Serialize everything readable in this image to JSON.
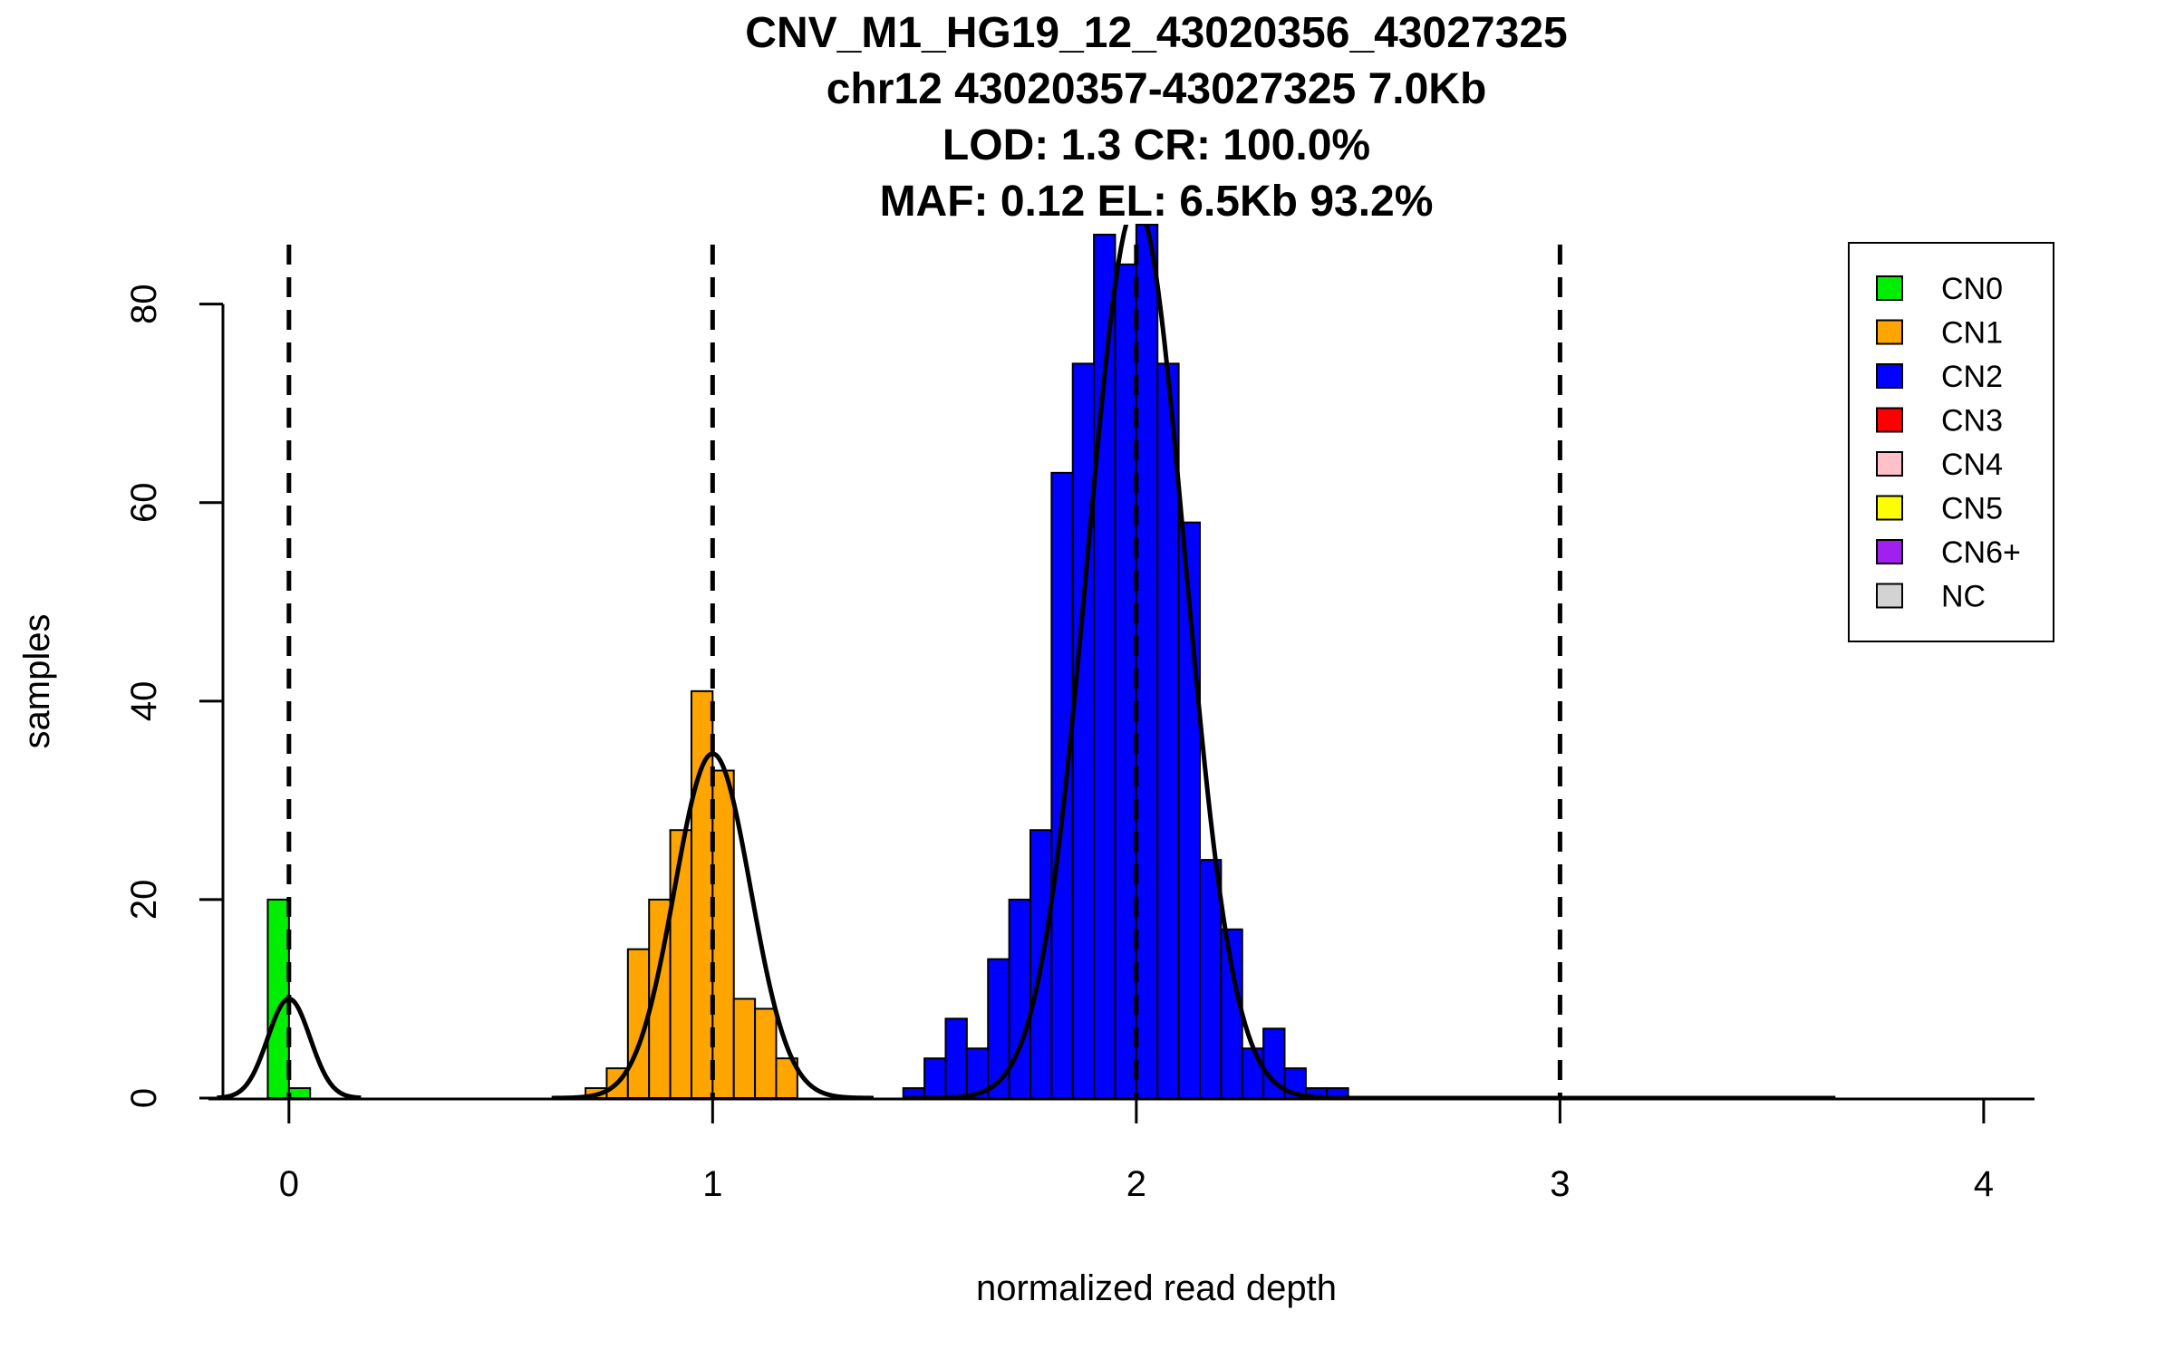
{
  "chart_data": {
    "type": "bar",
    "title_lines": [
      "CNV_M1_HG19_12_43020356_43027325",
      "chr12 43020357-43027325 7.0Kb",
      "LOD: 1.3 CR: 100.0%",
      "MAF: 0.12 EL: 6.5Kb 93.2%"
    ],
    "xlabel": "normalized read depth",
    "ylabel": "samples",
    "xlim": [
      -0.19,
      4.12
    ],
    "ylim": [
      0,
      88
    ],
    "x_ticks": [
      0,
      1,
      2,
      3,
      4
    ],
    "y_ticks": [
      0,
      20,
      40,
      60,
      80
    ],
    "bin_width": 0.05,
    "grid": false,
    "legend_position": "top-right",
    "reference_lines": [
      0,
      1,
      2,
      3
    ],
    "series": [
      {
        "name": "CN0",
        "color": "#00ee00",
        "bins": [
          [
            -0.025,
            20
          ],
          [
            0.025,
            1
          ]
        ]
      },
      {
        "name": "CN1",
        "color": "#ffa500",
        "bins": [
          [
            0.725,
            1
          ],
          [
            0.775,
            3
          ],
          [
            0.825,
            15
          ],
          [
            0.875,
            20
          ],
          [
            0.925,
            27
          ],
          [
            0.975,
            41
          ],
          [
            1.025,
            33
          ],
          [
            1.075,
            10
          ],
          [
            1.125,
            9
          ],
          [
            1.175,
            4
          ]
        ]
      },
      {
        "name": "CN2",
        "color": "#0000ff",
        "bins": [
          [
            1.475,
            1
          ],
          [
            1.525,
            4
          ],
          [
            1.575,
            8
          ],
          [
            1.625,
            5
          ],
          [
            1.675,
            14
          ],
          [
            1.725,
            20
          ],
          [
            1.775,
            27
          ],
          [
            1.825,
            63
          ],
          [
            1.875,
            74
          ],
          [
            1.925,
            87
          ],
          [
            1.975,
            84
          ],
          [
            2.025,
            88
          ],
          [
            2.075,
            74
          ],
          [
            2.125,
            58
          ],
          [
            2.175,
            24
          ],
          [
            2.225,
            17
          ],
          [
            2.275,
            5
          ],
          [
            2.325,
            7
          ],
          [
            2.375,
            3
          ],
          [
            2.425,
            1
          ],
          [
            2.475,
            1
          ]
        ]
      },
      {
        "name": "CN3",
        "color": "#ff0000",
        "bins": []
      },
      {
        "name": "CN4",
        "color": "#ffc0cb",
        "bins": []
      },
      {
        "name": "CN5",
        "color": "#ffff00",
        "bins": []
      },
      {
        "name": "CN6+",
        "color": "#a020f0",
        "bins": []
      },
      {
        "name": "NC",
        "color": "#d3d3d3",
        "bins": []
      }
    ],
    "density_curves": [
      {
        "mean": 0.0,
        "sd": 0.05,
        "peak": 10.0,
        "range": [
          -0.17,
          0.17
        ]
      },
      {
        "mean": 1.0,
        "sd": 0.09,
        "peak": 34.7,
        "range": [
          0.62,
          1.38
        ]
      },
      {
        "mean": 2.0,
        "sd": 0.115,
        "peak": 90.0,
        "range": [
          1.45,
          3.65
        ]
      }
    ]
  }
}
